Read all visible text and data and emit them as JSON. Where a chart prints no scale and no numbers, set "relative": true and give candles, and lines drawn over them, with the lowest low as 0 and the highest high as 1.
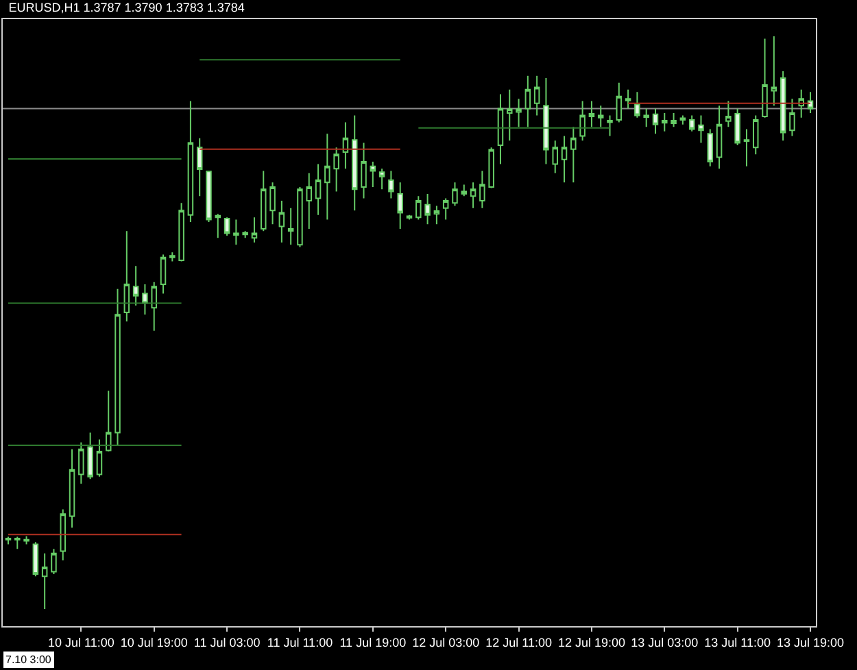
{
  "chart_data": {
    "type": "candlestick",
    "title": "EURUSD,H1 1.3787 1.3790 1.3783 1.3784",
    "relative": true,
    "categories": [
      null,
      null,
      null,
      null,
      null,
      null,
      null,
      null,
      "10 Jul 11:00",
      null,
      null,
      null,
      null,
      null,
      null,
      null,
      "10 Jul 19:00",
      null,
      null,
      null,
      null,
      null,
      null,
      null,
      "11 Jul 03:00",
      null,
      null,
      null,
      null,
      null,
      null,
      null,
      "11 Jul 11:00",
      null,
      null,
      null,
      null,
      null,
      null,
      null,
      "11 Jul 19:00",
      null,
      null,
      null,
      null,
      null,
      null,
      null,
      "12 Jul 03:00",
      null,
      null,
      null,
      null,
      null,
      null,
      null,
      "12 Jul 11:00",
      null,
      null,
      null,
      null,
      null,
      null,
      null,
      "12 Jul 19:00",
      null,
      null,
      null,
      null,
      null,
      null,
      null,
      "13 Jul 03:00",
      null,
      null,
      null,
      null,
      null,
      null,
      null,
      "13 Jul 11:00",
      null,
      null,
      null,
      null,
      null,
      null,
      null,
      "13 Jul 19:00"
    ],
    "annotations": [
      "7.10 3:00"
    ],
    "ref_lines": [
      {
        "axis": "y",
        "value": 0.874,
        "color": "#8a8a8a"
      }
    ],
    "series": [
      {
        "type": "line",
        "color": "#2f7a2f",
        "values": [
          0.786,
          0.786,
          0.786,
          0.786,
          0.786,
          0.786,
          0.786,
          0.786,
          0.786,
          0.786,
          0.786,
          0.786,
          0.786,
          0.786,
          0.786,
          0.786,
          0.786,
          0.786,
          0.786,
          0.786,
          null,
          null,
          null,
          null,
          null,
          null,
          null,
          null,
          null,
          null,
          null,
          null,
          null,
          null,
          null,
          null,
          null,
          null,
          null,
          null,
          null,
          null,
          null,
          null,
          null,
          null,
          null,
          null,
          null,
          null,
          null,
          null,
          null,
          null,
          null,
          null,
          null,
          null,
          null,
          null,
          null,
          null,
          null,
          null,
          null,
          null,
          null,
          null,
          null,
          null,
          null,
          null,
          null,
          null,
          null,
          null,
          null,
          null,
          null,
          null,
          null,
          null,
          null,
          null,
          null,
          null,
          null,
          null,
          null
        ]
      },
      {
        "type": "line",
        "color": "#2f7a2f",
        "values": [
          0.534,
          0.534,
          0.534,
          0.534,
          0.534,
          0.534,
          0.534,
          0.534,
          0.534,
          0.534,
          0.534,
          0.534,
          0.534,
          0.534,
          0.534,
          0.534,
          0.534,
          0.534,
          0.534,
          0.534,
          null,
          null,
          null,
          null,
          null,
          null,
          null,
          null,
          null,
          null,
          null,
          null,
          null,
          null,
          null,
          null,
          null,
          null,
          null,
          null,
          null,
          null,
          null,
          null,
          null,
          null,
          null,
          null,
          null,
          null,
          null,
          null,
          null,
          null,
          null,
          null,
          null,
          null,
          null,
          null,
          null,
          null,
          null,
          null,
          null,
          null,
          null,
          null,
          null,
          null,
          null,
          null,
          null,
          null,
          null,
          null,
          null,
          null,
          null,
          null,
          null,
          null,
          null,
          null,
          null,
          null,
          null,
          null,
          null
        ]
      },
      {
        "type": "line",
        "color": "#2f7a2f",
        "values": [
          0.286,
          0.286,
          0.286,
          0.286,
          0.286,
          0.286,
          0.286,
          0.286,
          0.286,
          0.286,
          0.286,
          0.286,
          0.286,
          0.286,
          0.286,
          0.286,
          0.286,
          0.286,
          0.286,
          0.286,
          null,
          null,
          null,
          null,
          null,
          null,
          null,
          null,
          null,
          null,
          null,
          null,
          null,
          null,
          null,
          null,
          null,
          null,
          null,
          null,
          null,
          null,
          null,
          null,
          null,
          null,
          null,
          null,
          null,
          null,
          null,
          null,
          null,
          null,
          null,
          null,
          null,
          null,
          null,
          null,
          null,
          null,
          null,
          null,
          null,
          null,
          null,
          null,
          null,
          null,
          null,
          null,
          null,
          null,
          null,
          null,
          null,
          null,
          null,
          null,
          null,
          null,
          null,
          null,
          null,
          null,
          null,
          null,
          null
        ]
      },
      {
        "type": "line",
        "color": "#b03020",
        "values": [
          0.13,
          0.13,
          0.13,
          0.13,
          0.13,
          0.13,
          0.13,
          0.13,
          0.13,
          0.13,
          0.13,
          0.13,
          0.13,
          0.13,
          0.13,
          0.13,
          0.13,
          0.13,
          0.13,
          0.13,
          null,
          null,
          null,
          null,
          null,
          null,
          null,
          null,
          null,
          null,
          null,
          null,
          null,
          null,
          null,
          null,
          null,
          null,
          null,
          null,
          null,
          null,
          null,
          null,
          null,
          null,
          null,
          null,
          null,
          null,
          null,
          null,
          null,
          null,
          null,
          null,
          null,
          null,
          null,
          null,
          null,
          null,
          null,
          null,
          null,
          null,
          null,
          null,
          null,
          null,
          null,
          null,
          null,
          null,
          null,
          null,
          null,
          null,
          null,
          null,
          null,
          null,
          null,
          null,
          null,
          null,
          null,
          null,
          null
        ]
      },
      {
        "type": "line",
        "color": "#2f7a2f",
        "values": [
          null,
          null,
          null,
          null,
          null,
          null,
          null,
          null,
          null,
          null,
          null,
          null,
          null,
          null,
          null,
          null,
          null,
          null,
          null,
          null,
          null,
          0.959,
          0.959,
          0.959,
          0.959,
          0.959,
          0.959,
          0.959,
          0.959,
          0.959,
          0.959,
          0.959,
          0.959,
          0.959,
          0.959,
          0.959,
          0.959,
          0.959,
          0.959,
          0.959,
          0.959,
          0.959,
          0.959,
          0.959,
          null,
          null,
          null,
          null,
          null,
          null,
          null,
          null,
          null,
          null,
          null,
          null,
          null,
          null,
          null,
          null,
          null,
          null,
          null,
          null,
          null,
          null,
          null,
          null,
          null,
          null,
          null,
          null,
          null,
          null,
          null,
          null,
          null,
          null,
          null,
          null,
          null,
          null,
          null,
          null,
          null,
          null,
          null,
          null,
          null
        ]
      },
      {
        "type": "line",
        "color": "#b03020",
        "values": [
          null,
          null,
          null,
          null,
          null,
          null,
          null,
          null,
          null,
          null,
          null,
          null,
          null,
          null,
          null,
          null,
          null,
          null,
          null,
          null,
          null,
          0.803,
          0.803,
          0.803,
          0.803,
          0.803,
          0.803,
          0.803,
          0.803,
          0.803,
          0.803,
          0.803,
          0.803,
          0.803,
          0.803,
          0.803,
          0.803,
          0.803,
          0.803,
          0.803,
          0.803,
          0.803,
          0.803,
          0.803,
          null,
          null,
          null,
          null,
          null,
          null,
          null,
          null,
          null,
          null,
          null,
          null,
          null,
          null,
          null,
          null,
          null,
          null,
          null,
          null,
          null,
          null,
          null,
          null,
          null,
          null,
          null,
          null,
          null,
          null,
          null,
          null,
          null,
          null,
          null,
          null,
          null,
          null,
          null,
          null,
          null,
          null,
          null,
          null,
          null
        ]
      },
      {
        "type": "line",
        "color": "#2f7a2f",
        "values": [
          null,
          null,
          null,
          null,
          null,
          null,
          null,
          null,
          null,
          null,
          null,
          null,
          null,
          null,
          null,
          null,
          null,
          null,
          null,
          null,
          null,
          null,
          null,
          null,
          null,
          null,
          null,
          null,
          null,
          null,
          null,
          null,
          null,
          null,
          null,
          null,
          null,
          null,
          null,
          null,
          null,
          null,
          null,
          null,
          null,
          0.84,
          0.84,
          0.84,
          0.84,
          0.84,
          0.84,
          0.84,
          0.84,
          0.84,
          0.84,
          0.84,
          0.84,
          0.84,
          0.84,
          0.84,
          0.84,
          0.84,
          0.84,
          0.84,
          0.84,
          0.84,
          0.84,
          null,
          null,
          null,
          null,
          null,
          null,
          null,
          null,
          null,
          null,
          null,
          null,
          null,
          null,
          null,
          null,
          null,
          null,
          null,
          null,
          null,
          null
        ]
      },
      {
        "type": "line",
        "color": "#b03020",
        "values": [
          null,
          null,
          null,
          null,
          null,
          null,
          null,
          null,
          null,
          null,
          null,
          null,
          null,
          null,
          null,
          null,
          null,
          null,
          null,
          null,
          null,
          null,
          null,
          null,
          null,
          null,
          null,
          null,
          null,
          null,
          null,
          null,
          null,
          null,
          null,
          null,
          null,
          null,
          null,
          null,
          null,
          null,
          null,
          null,
          null,
          null,
          null,
          null,
          null,
          null,
          null,
          null,
          null,
          null,
          null,
          null,
          null,
          null,
          null,
          null,
          null,
          null,
          null,
          null,
          null,
          null,
          null,
          null,
          0.883,
          0.883,
          0.883,
          0.883,
          0.883,
          0.883,
          0.883,
          0.883,
          0.883,
          0.883,
          0.883,
          0.883,
          0.883,
          0.883,
          0.883,
          0.883,
          0.883,
          0.883,
          0.883,
          0.883,
          0.883
        ]
      },
      {
        "color": "#66cc66",
        "ohlc": [
          [
            0.121,
            0.126,
            0.113,
            0.123
          ],
          [
            0.121,
            0.126,
            0.105,
            0.123
          ],
          [
            0.121,
            0.127,
            0.113,
            0.119
          ],
          [
            0.113,
            0.117,
            0.057,
            0.061
          ],
          [
            0.057,
            0.097,
            0,
            0.073
          ],
          [
            0.065,
            0.105,
            0.061,
            0.097
          ],
          [
            0.101,
            0.174,
            0.085,
            0.166
          ],
          [
            0.162,
            0.279,
            0.142,
            0.243
          ],
          [
            0.235,
            0.291,
            0.219,
            0.279
          ],
          [
            0.283,
            0.308,
            0.227,
            0.231
          ],
          [
            0.235,
            0.296,
            0.231,
            0.275
          ],
          [
            0.277,
            0.381,
            0.275,
            0.308
          ],
          [
            0.308,
            0.559,
            0.287,
            0.514
          ],
          [
            0.518,
            0.66,
            0.502,
            0.567
          ],
          [
            0.563,
            0.599,
            0.53,
            0.547
          ],
          [
            0.551,
            0.567,
            0.514,
            0.534
          ],
          [
            0.526,
            0.571,
            0.486,
            0.563
          ],
          [
            0.567,
            0.619,
            0.551,
            0.614
          ],
          [
            0.614,
            0.623,
            0.607,
            0.617
          ],
          [
            0.609,
            0.709,
            0.607,
            0.696
          ],
          [
            0.688,
            0.887,
            0.676,
            0.814
          ],
          [
            0.806,
            0.822,
            0.721,
            0.768
          ],
          [
            0.764,
            0.765,
            0.676,
            0.68
          ],
          [
            0.687,
            0.69,
            0.648,
            0.684
          ],
          [
            0.682,
            0.684,
            0.652,
            0.656
          ],
          [
            0.656,
            0.68,
            0.636,
            0.653
          ],
          [
            0.654,
            0.66,
            0.648,
            0.657
          ],
          [
            0.648,
            0.684,
            0.64,
            0.656
          ],
          [
            0.664,
            0.765,
            0.66,
            0.733
          ],
          [
            0.696,
            0.745,
            0.672,
            0.737
          ],
          [
            0.668,
            0.713,
            0.64,
            0.692
          ],
          [
            0.66,
            0.7,
            0.636,
            0.664
          ],
          [
            0.636,
            0.737,
            0.632,
            0.733
          ],
          [
            0.713,
            0.761,
            0.664,
            0.737
          ],
          [
            0.717,
            0.777,
            0.688,
            0.749
          ],
          [
            0.745,
            0.83,
            0.68,
            0.773
          ],
          [
            0.769,
            0.806,
            0.729,
            0.794
          ],
          [
            0.798,
            0.85,
            0.769,
            0.822
          ],
          [
            0.819,
            0.862,
            0.696,
            0.733
          ],
          [
            0.737,
            0.814,
            0.717,
            0.781
          ],
          [
            0.773,
            0.781,
            0.737,
            0.765
          ],
          [
            0.763,
            0.769,
            0.733,
            0.755
          ],
          [
            0.749,
            0.765,
            0.717,
            0.729
          ],
          [
            0.725,
            0.745,
            0.664,
            0.692
          ],
          [
            0.686,
            0.688,
            0.68,
            0.683
          ],
          [
            0.684,
            0.721,
            0.68,
            0.713
          ],
          [
            0.706,
            0.725,
            0.672,
            0.688
          ],
          [
            0.69,
            0.704,
            0.672,
            0.695
          ],
          [
            0.7,
            0.717,
            0.68,
            0.713
          ],
          [
            0.709,
            0.745,
            0.704,
            0.733
          ],
          [
            0.725,
            0.741,
            0.721,
            0.729
          ],
          [
            0.721,
            0.745,
            0.7,
            0.733
          ],
          [
            0.713,
            0.765,
            0.7,
            0.741
          ],
          [
            0.737,
            0.806,
            0.735,
            0.802
          ],
          [
            0.81,
            0.899,
            0.777,
            0.874
          ],
          [
            0.866,
            0.907,
            0.818,
            0.873
          ],
          [
            0.868,
            0.891,
            0.842,
            0.873
          ],
          [
            0.874,
            0.931,
            0.842,
            0.907
          ],
          [
            0.883,
            0.931,
            0.862,
            0.911
          ],
          [
            0.879,
            0.927,
            0.777,
            0.802
          ],
          [
            0.777,
            0.818,
            0.761,
            0.806
          ],
          [
            0.785,
            0.826,
            0.745,
            0.806
          ],
          [
            0.803,
            0.842,
            0.745,
            0.822
          ],
          [
            0.826,
            0.887,
            0.818,
            0.862
          ],
          [
            0.86,
            0.887,
            0.842,
            0.865
          ],
          [
            0.858,
            0.879,
            0.842,
            0.862
          ],
          [
            0.85,
            0.862,
            0.826,
            0.853
          ],
          [
            0.854,
            0.919,
            0.85,
            0.895
          ],
          [
            0.888,
            0.907,
            0.874,
            0.891
          ],
          [
            0.881,
            0.903,
            0.858,
            0.862
          ],
          [
            0.862,
            0.874,
            0.842,
            0.859
          ],
          [
            0.864,
            0.874,
            0.83,
            0.846
          ],
          [
            0.849,
            0.866,
            0.834,
            0.853
          ],
          [
            0.848,
            0.866,
            0.842,
            0.853
          ],
          [
            0.854,
            0.862,
            0.846,
            0.857
          ],
          [
            0.854,
            0.862,
            0.834,
            0.838
          ],
          [
            0.845,
            0.862,
            0.814,
            0.836
          ],
          [
            0.83,
            0.838,
            0.773,
            0.781
          ],
          [
            0.789,
            0.879,
            0.769,
            0.846
          ],
          [
            0.852,
            0.887,
            0.842,
            0.86
          ],
          [
            0.865,
            0.874,
            0.81,
            0.814
          ],
          [
            0.819,
            0.838,
            0.773,
            0.817
          ],
          [
            0.806,
            0.862,
            0.794,
            0.854
          ],
          [
            0.86,
            0.996,
            0.858,
            0.915
          ],
          [
            0.905,
            1,
            0.879,
            0.911
          ],
          [
            0.927,
            0.939,
            0.818,
            0.832
          ],
          [
            0.836,
            0.891,
            0.826,
            0.866
          ],
          [
            0.879,
            0.907,
            0.858,
            0.891
          ],
          [
            0.887,
            0.903,
            0.866,
            0.874
          ]
        ]
      }
    ]
  }
}
